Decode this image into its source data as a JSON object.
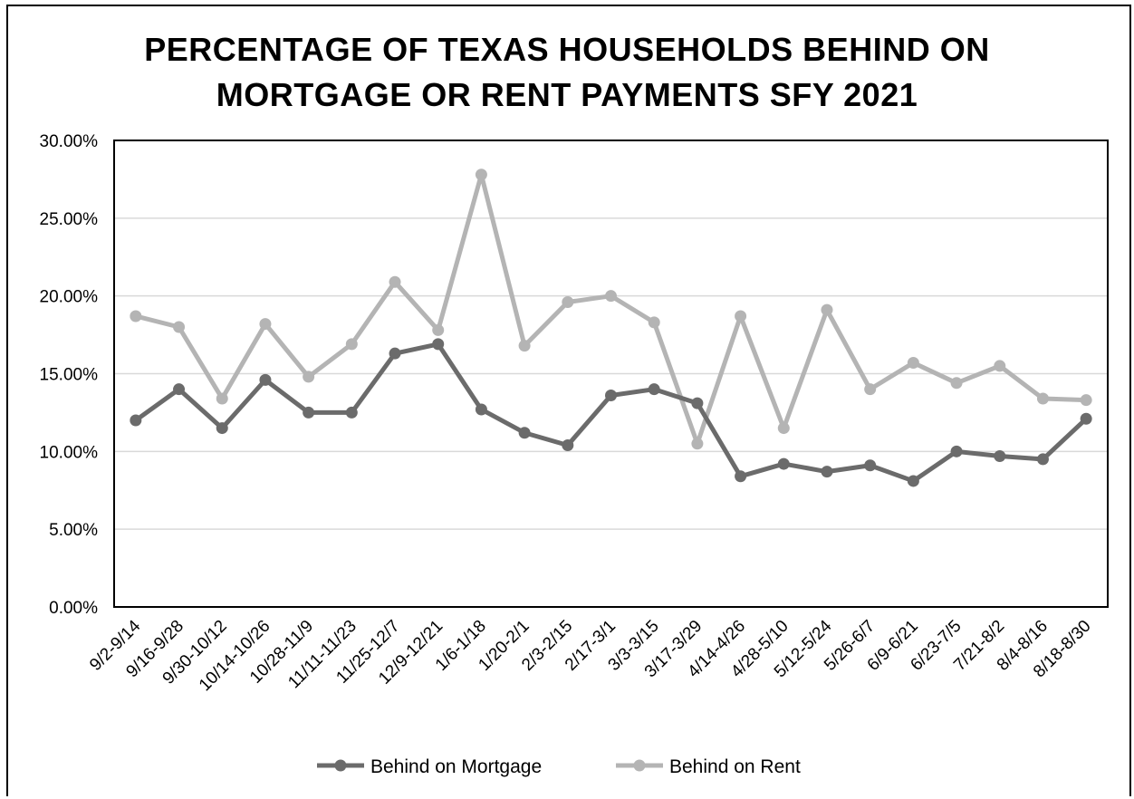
{
  "chart_data": {
    "type": "line",
    "title": "PERCENTAGE OF TEXAS HOUSEHOLDS BEHIND ON\nMORTGAGE OR RENT PAYMENTS SFY 2021",
    "xlabel": "",
    "ylabel": "",
    "ylim": [
      0,
      0.3
    ],
    "yticks": [
      "0.00%",
      "5.00%",
      "10.00%",
      "15.00%",
      "20.00%",
      "25.00%",
      "30.00%"
    ],
    "categories": [
      "9/2-9/14",
      "9/16-9/28",
      "9/30-10/12",
      "10/14-10/26",
      "10/28-11/9",
      "11/11-11/23",
      "11/25-12/7",
      "12/9-12/21",
      "1/6-1/18",
      "1/20-2/1",
      "2/3-2/15",
      "2/17-3/1",
      "3/3-3/15",
      "3/17-3/29",
      "4/14-4/26",
      "4/28-5/10",
      "5/12-5/24",
      "5/26-6/7",
      "6/9-6/21",
      "6/23-7/5",
      "7/21-8/2",
      "8/4-8/16",
      "8/18-8/30"
    ],
    "series": [
      {
        "name": "Behind on Mortgage",
        "color": "#6b6b6b",
        "values": [
          0.12,
          0.14,
          0.115,
          0.146,
          0.125,
          0.125,
          0.163,
          0.169,
          0.127,
          0.112,
          0.104,
          0.136,
          0.14,
          0.131,
          0.084,
          0.092,
          0.087,
          0.091,
          0.081,
          0.1,
          0.097,
          0.095,
          0.121
        ]
      },
      {
        "name": "Behind on Rent",
        "color": "#b4b4b4",
        "values": [
          0.187,
          0.18,
          0.134,
          0.182,
          0.148,
          0.169,
          0.209,
          0.178,
          0.278,
          0.168,
          0.196,
          0.2,
          0.183,
          0.105,
          0.187,
          0.115,
          0.191,
          0.14,
          0.157,
          0.144,
          0.155,
          0.134,
          0.133
        ]
      }
    ],
    "grid": true,
    "legend": "bottom"
  }
}
